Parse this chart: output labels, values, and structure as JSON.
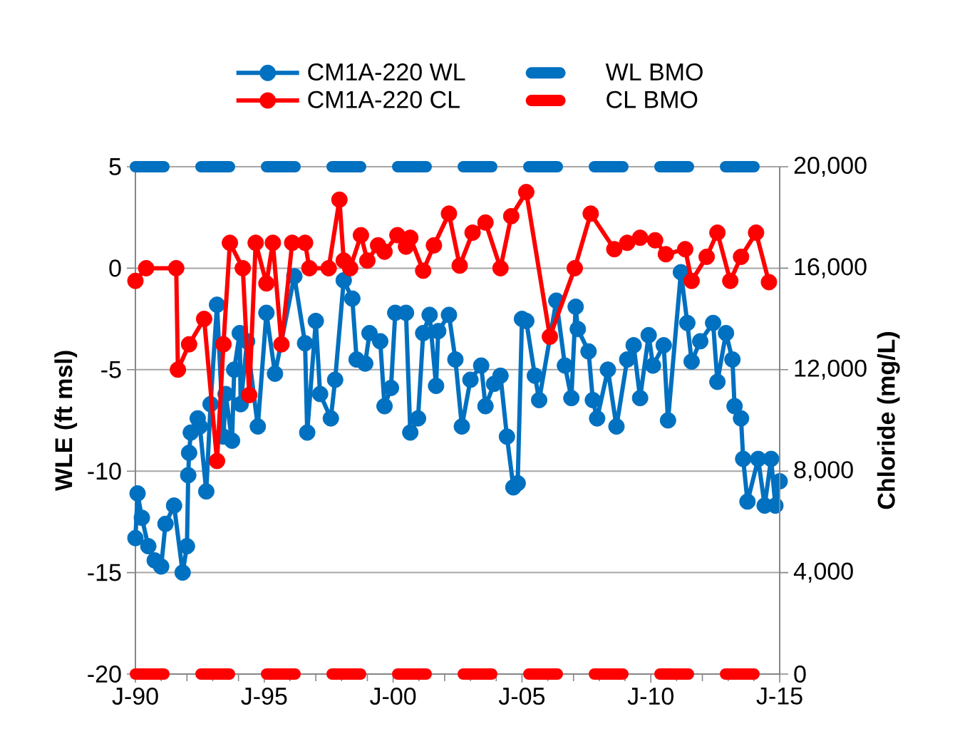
{
  "chart_data": {
    "type": "line",
    "ylabel": "WLE (ft msl)",
    "y2label": "Chloride (mg/L)",
    "xlim": [
      "1990-01",
      "2015-01"
    ],
    "xticks": [
      {
        "value": "1990-01",
        "label": "J-90"
      },
      {
        "value": "1991-01",
        "label": null
      },
      {
        "value": "1992-01",
        "label": null
      },
      {
        "value": "1993-01",
        "label": null
      },
      {
        "value": "1994-01",
        "label": null
      },
      {
        "value": "1995-01",
        "label": "J-95"
      },
      {
        "value": "1996-01",
        "label": null
      },
      {
        "value": "1997-01",
        "label": null
      },
      {
        "value": "1998-01",
        "label": null
      },
      {
        "value": "1999-01",
        "label": null
      },
      {
        "value": "2000-01",
        "label": "J-00"
      },
      {
        "value": "2001-01",
        "label": null
      },
      {
        "value": "2002-01",
        "label": null
      },
      {
        "value": "2003-01",
        "label": null
      },
      {
        "value": "2004-01",
        "label": null
      },
      {
        "value": "2005-01",
        "label": "J-05"
      },
      {
        "value": "2006-01",
        "label": null
      },
      {
        "value": "2007-01",
        "label": null
      },
      {
        "value": "2008-01",
        "label": null
      },
      {
        "value": "2009-01",
        "label": null
      },
      {
        "value": "2010-01",
        "label": "J-10"
      },
      {
        "value": "2011-01",
        "label": null
      },
      {
        "value": "2012-01",
        "label": null
      },
      {
        "value": "2013-01",
        "label": null
      },
      {
        "value": "2014-01",
        "label": null
      },
      {
        "value": "2015-01",
        "label": "J-15"
      }
    ],
    "ylim": [
      -20,
      5
    ],
    "yticks": [
      -20,
      -15,
      -10,
      -5,
      0,
      5
    ],
    "y2lim": [
      0,
      20000
    ],
    "y2ticks": [
      {
        "value": 0,
        "label": "0"
      },
      {
        "value": 4000,
        "label": "4,000"
      },
      {
        "value": 8000,
        "label": "8,000"
      },
      {
        "value": 12000,
        "label": "12,000"
      },
      {
        "value": 16000,
        "label": "16,000"
      },
      {
        "value": 20000,
        "label": "20,000"
      }
    ],
    "grid": "y",
    "legend": "top",
    "series": [
      {
        "name": "CM1A-220 WL",
        "color": "#0070c0",
        "marker": "circle",
        "line_style": "solid",
        "x": [
          "1990-01",
          "1990-02",
          "1990-04",
          "1990-07",
          "1990-10",
          "1991-01",
          "1991-03",
          "1991-07",
          "1991-11",
          "1992-01",
          "1992-01-19",
          "1992-02",
          "1992-02-25",
          "1992-06",
          "1992-07",
          "1992-10",
          "1992-12",
          "1993-03",
          "1993-06",
          "1993-07",
          "1993-10",
          "1993-11",
          "1994-01-19",
          "1994-02",
          "1994-05",
          "1994-10",
          "1995-02",
          "1995-06",
          "1996-03",
          "1996-08",
          "1996-09",
          "1997-01",
          "1997-03",
          "1997-08",
          "1997-10",
          "1998-02",
          "1998-06",
          "1998-08",
          "1998-12",
          "1999-02",
          "1999-07",
          "1999-09",
          "1999-12",
          "2000-02",
          "2000-07",
          "2000-09",
          "2000-12-19",
          "2001-03",
          "2001-06",
          "2001-09",
          "2001-10",
          "2002-03",
          "2002-06",
          "2002-09",
          "2003-01",
          "2003-06",
          "2003-08",
          "2003-12",
          "2004-03",
          "2004-06",
          "2004-09",
          "2004-11",
          "2005-01",
          "2005-03",
          "2005-07",
          "2005-09",
          "2006-05",
          "2006-09",
          "2006-12",
          "2007-02",
          "2007-03",
          "2007-08",
          "2007-10",
          "2007-12",
          "2008-05",
          "2008-09",
          "2009-02",
          "2009-05",
          "2009-08",
          "2009-12",
          "2010-02",
          "2010-07",
          "2010-09",
          "2011-03",
          "2011-06",
          "2011-08",
          "2011-12",
          "2012-06",
          "2012-08",
          "2012-12",
          "2013-03",
          "2013-04",
          "2013-07",
          "2013-08",
          "2013-10",
          "2014-03",
          "2014-06",
          "2014-09",
          "2014-11",
          "2015-01"
        ],
        "values": [
          -13.3,
          -11.1,
          -12.3,
          -13.7,
          -14.4,
          -14.7,
          -12.6,
          -11.7,
          -15.0,
          -13.7,
          -10.2,
          -9.1,
          -8.1,
          -7.4,
          -7.8,
          -11.0,
          -6.7,
          -1.8,
          -8.3,
          -6.2,
          -8.5,
          -5.0,
          -3.2,
          -6.7,
          -3.6,
          -7.8,
          -2.2,
          -5.2,
          -0.4,
          -3.7,
          -8.1,
          -2.6,
          -6.2,
          -7.4,
          -5.5,
          -0.6,
          -1.5,
          -4.5,
          -4.7,
          -3.2,
          -3.6,
          -6.8,
          -5.9,
          -2.2,
          -2.2,
          -8.1,
          -7.4,
          -3.2,
          -2.3,
          -5.8,
          -3.1,
          -2.3,
          -4.5,
          -7.8,
          -5.5,
          -4.8,
          -6.8,
          -5.7,
          -5.3,
          -8.3,
          -10.8,
          -10.6,
          -2.5,
          -2.6,
          -5.3,
          -6.5,
          -1.6,
          -4.8,
          -6.4,
          -1.9,
          -3.0,
          -4.1,
          -6.5,
          -7.4,
          -5.0,
          -7.8,
          -4.5,
          -3.8,
          -6.4,
          -3.3,
          -4.8,
          -3.8,
          -7.5,
          -0.2,
          -2.7,
          -4.6,
          -3.6,
          -2.7,
          -5.6,
          -3.2,
          -4.5,
          -6.8,
          -7.4,
          -9.4,
          -11.5,
          -9.4,
          -11.7,
          -9.4,
          -11.7,
          -10.5
        ]
      },
      {
        "name": "WL BMO",
        "color": "#0070c0",
        "marker": "none",
        "line_style": "dashed",
        "x": [
          "1990-01",
          "2015-01"
        ],
        "values": [
          5,
          5
        ]
      },
      {
        "name": "CM1A-220 CL",
        "color": "#ff0000",
        "marker": "circle",
        "line_style": "solid",
        "axis": "y2",
        "x": [
          "1990-01",
          "1990-06",
          "1991-08",
          "1991-08-25",
          "1992-02",
          "1992-09",
          "1993-03",
          "1993-06",
          "1993-09",
          "1994-03",
          "1994-06",
          "1994-09",
          "1995-02",
          "1995-05",
          "1995-09",
          "1996-02",
          "1996-08",
          "1996-10",
          "1997-07",
          "1997-12",
          "1998-02",
          "1998-05",
          "1998-10",
          "1999-01",
          "1999-06",
          "1999-09",
          "2000-03",
          "2000-07",
          "2000-09",
          "2001-03",
          "2001-08",
          "2002-03",
          "2002-08",
          "2003-02",
          "2003-08",
          "2004-03",
          "2004-08",
          "2005-03",
          "2006-02",
          "2007-01-19",
          "2007-09",
          "2008-08",
          "2009-02",
          "2009-08",
          "2010-03",
          "2010-08",
          "2011-05",
          "2011-08",
          "2012-03",
          "2012-08",
          "2013-02",
          "2013-07",
          "2014-02",
          "2014-08"
        ],
        "values": [
          15500,
          16000,
          16000,
          12000,
          13000,
          14000,
          8400,
          13000,
          17000,
          16000,
          11000,
          17000,
          15400,
          17000,
          13000,
          17000,
          17000,
          16000,
          16000,
          18700,
          16300,
          16000,
          17300,
          16300,
          16900,
          16650,
          17300,
          16850,
          17200,
          15900,
          16900,
          18150,
          16100,
          17400,
          17800,
          16000,
          18050,
          19000,
          13300,
          16000,
          18150,
          16750,
          17000,
          17200,
          17100,
          16550,
          16750,
          15500,
          16450,
          17400,
          15500,
          16450,
          17400,
          15450
        ]
      },
      {
        "name": "CL BMO",
        "color": "#ff0000",
        "marker": "none",
        "line_style": "dashed",
        "axis": "y2",
        "x": [
          "1990-01",
          "2015-01"
        ],
        "values": [
          0,
          0
        ]
      }
    ]
  }
}
